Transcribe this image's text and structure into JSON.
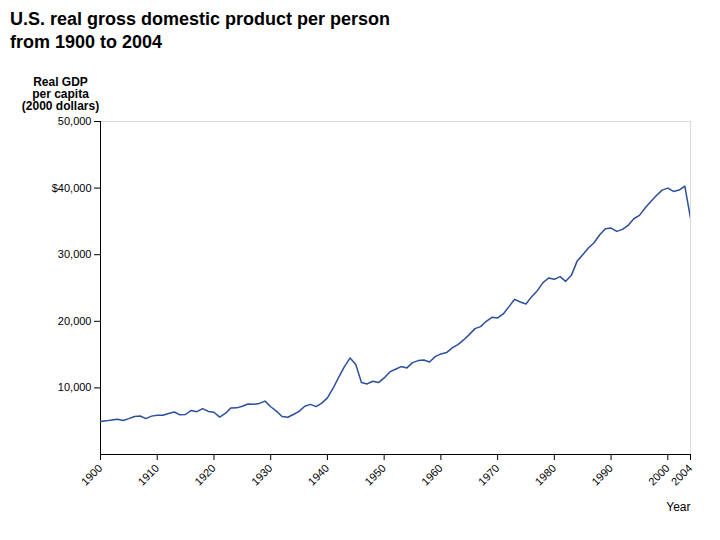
{
  "chart_data": {
    "type": "line",
    "title": "U.S. real gross domestic product per person",
    "subtitle": "from 1900 to 2004",
    "xlabel": "Year",
    "ylabel": "Real GDP\nper capita\n(2000 dollars)",
    "color": "#2b4f9e",
    "grid": false,
    "xlim": [
      1900,
      2004
    ],
    "ylim": [
      0,
      50000
    ],
    "xticks": [
      1900,
      1910,
      1920,
      1930,
      1940,
      1950,
      1960,
      1970,
      1980,
      1990,
      2000,
      2004
    ],
    "yticks": [
      {
        "value": 10000,
        "label": "10,000"
      },
      {
        "value": 20000,
        "label": "20,000"
      },
      {
        "value": 30000,
        "label": "30,000"
      },
      {
        "value": 40000,
        "label": "$40,000"
      },
      {
        "value": 50000,
        "label": "50,000"
      }
    ],
    "x": [
      1900,
      1901,
      1902,
      1903,
      1904,
      1905,
      1906,
      1907,
      1908,
      1909,
      1910,
      1911,
      1912,
      1913,
      1914,
      1915,
      1916,
      1917,
      1918,
      1919,
      1920,
      1921,
      1922,
      1923,
      1924,
      1925,
      1926,
      1927,
      1928,
      1929,
      1930,
      1931,
      1932,
      1933,
      1934,
      1935,
      1936,
      1937,
      1938,
      1939,
      1940,
      1941,
      1942,
      1943,
      1944,
      1945,
      1946,
      1947,
      1948,
      1949,
      1950,
      1951,
      1952,
      1953,
      1954,
      1955,
      1956,
      1957,
      1958,
      1959,
      1960,
      1961,
      1962,
      1963,
      1964,
      1965,
      1966,
      1967,
      1968,
      1969,
      1970,
      1971,
      1972,
      1973,
      1974,
      1975,
      1976,
      1977,
      1978,
      1979,
      1980,
      1981,
      1982,
      1983,
      1984,
      1985,
      1986,
      1987,
      1988,
      1989,
      1990,
      1991,
      1992,
      1993,
      1994,
      1995,
      1996,
      1997,
      1998,
      1999,
      2000,
      2001,
      2002,
      2003,
      2004
    ],
    "values": [
      4943,
      5050,
      5180,
      5290,
      5100,
      5387,
      5713,
      5786,
      5389,
      5762,
      5884,
      5894,
      6166,
      6385,
      5951,
      6004,
      6613,
      6431,
      6888,
      6472,
      6341,
      5620,
      6163,
      6996,
      7005,
      7246,
      7574,
      7533,
      7670,
      8016,
      7173,
      6510,
      5715,
      5589,
      6010,
      6484,
      7237,
      7525,
      7182,
      7711,
      8501,
      9949,
      11616,
      13200,
      14500,
      13500,
      10800,
      10600,
      11000,
      10800,
      11500,
      12400,
      12800,
      13200,
      13000,
      13800,
      14100,
      14200,
      13900,
      14700,
      15100,
      15300,
      16000,
      16500,
      17200,
      18000,
      18900,
      19200,
      20000,
      20600,
      20500,
      21100,
      22200,
      23300,
      22900,
      22600,
      23700,
      24600,
      25800,
      26500,
      26300,
      26700,
      26000,
      26900,
      29000,
      30000,
      31000,
      31800,
      33000,
      33900,
      34000,
      33500,
      33800,
      34400,
      35400,
      35900,
      37000,
      38000,
      38900,
      39700,
      40000,
      39500,
      39700,
      40300,
      35500
    ]
  }
}
